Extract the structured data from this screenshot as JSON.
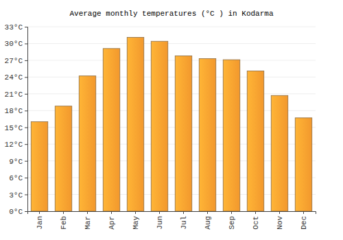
{
  "chart_data": {
    "type": "bar",
    "title": "Average monthly temperatures (°C ) in Kodarma",
    "categories": [
      "Jan",
      "Feb",
      "Mar",
      "Apr",
      "May",
      "Jun",
      "Jul",
      "Aug",
      "Sep",
      "Oct",
      "Nov",
      "Dec"
    ],
    "values": [
      16.0,
      18.8,
      24.2,
      29.1,
      31.1,
      30.4,
      27.8,
      27.3,
      27.1,
      25.1,
      20.7,
      16.7
    ],
    "color": "#ffa030",
    "ylim": [
      0,
      33
    ],
    "yticks": [
      {
        "value": 0,
        "label": "0°C"
      },
      {
        "value": 3,
        "label": "3°C"
      },
      {
        "value": 6,
        "label": "6°C"
      },
      {
        "value": 9,
        "label": "9°C"
      },
      {
        "value": 12,
        "label": "12°C"
      },
      {
        "value": 15,
        "label": "15°C"
      },
      {
        "value": 18,
        "label": "18°C"
      },
      {
        "value": 21,
        "label": "21°C"
      },
      {
        "value": 24,
        "label": "24°C"
      },
      {
        "value": 27,
        "label": "27°C"
      },
      {
        "value": 30,
        "label": "30°C"
      },
      {
        "value": 33,
        "label": "33°C"
      }
    ],
    "grid": true
  }
}
